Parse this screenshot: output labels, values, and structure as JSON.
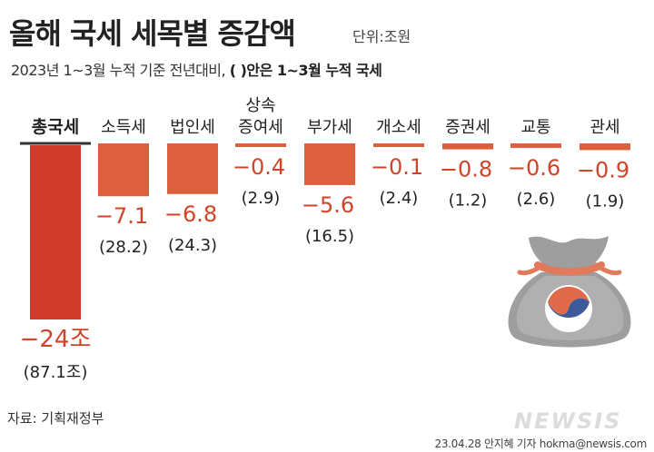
{
  "header": {
    "title": "올해 국세 세목별 증감액",
    "unit": "단위:조원",
    "subtitle_plain": "2023년 1~3월 누적 기준 전년대비,",
    "subtitle_bold": "( )안은 1~3월 누적 국세"
  },
  "chart_data": {
    "type": "bar",
    "categories": [
      [
        "총국세"
      ],
      [
        "소득세"
      ],
      [
        "법인세"
      ],
      [
        "상속",
        "증여세"
      ],
      [
        "부가세"
      ],
      [
        "개소세"
      ],
      [
        "증권세"
      ],
      [
        "교통"
      ],
      [
        "관세"
      ]
    ],
    "values": [
      -24,
      -7.1,
      -6.8,
      -0.4,
      -5.6,
      -0.1,
      -0.8,
      -0.6,
      -0.9
    ],
    "value_labels": [
      "−24조",
      "−7.1",
      "−6.8",
      "−0.4",
      "−5.6",
      "−0.1",
      "−0.8",
      "−0.6",
      "−0.9"
    ],
    "totals": [
      "(87.1조)",
      "(28.2)",
      "(24.3)",
      "(2.9)",
      "(16.5)",
      "(2.4)",
      "(1.2)",
      "(2.6)",
      "(1.9)"
    ],
    "colors": {
      "total_bar": "#d03a2b",
      "bar": "#dc5f3e",
      "value_text": "#d0442a",
      "baseline": "#333333"
    }
  },
  "footer": {
    "source": "자료: 기획재정부",
    "credit": "23.04.28 안지혜 기자 hokma@newsis.com",
    "watermark": "NEWSIS"
  },
  "illustration": {
    "icon": "money-bag-icon"
  }
}
